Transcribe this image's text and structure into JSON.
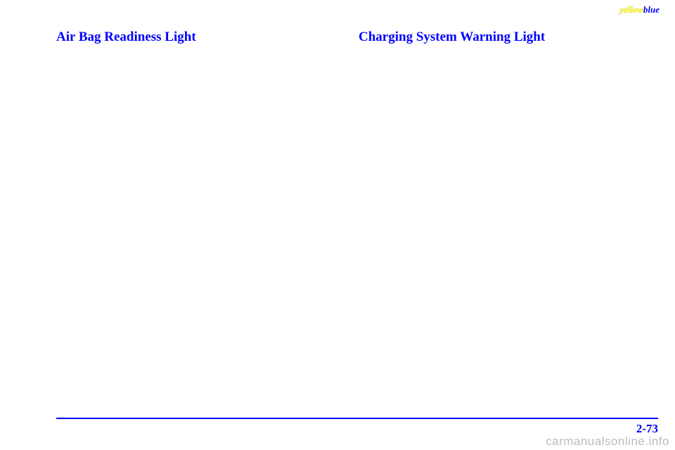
{
  "header": {
    "yellow": "yellow",
    "blue": "blue"
  },
  "left": {
    "heading": "Air Bag Readiness Light"
  },
  "right": {
    "heading": "Charging System Warning Light"
  },
  "footer": {
    "page_number": "2-73",
    "watermark": "carmanualsonline.info"
  },
  "colors": {
    "heading_color": "#0000ff",
    "rule_color": "#0000ff",
    "page_number_color": "#0000ff",
    "yellow_color": "#ffff00",
    "watermark_color": "#bbbbbb",
    "background": "#ffffff"
  }
}
